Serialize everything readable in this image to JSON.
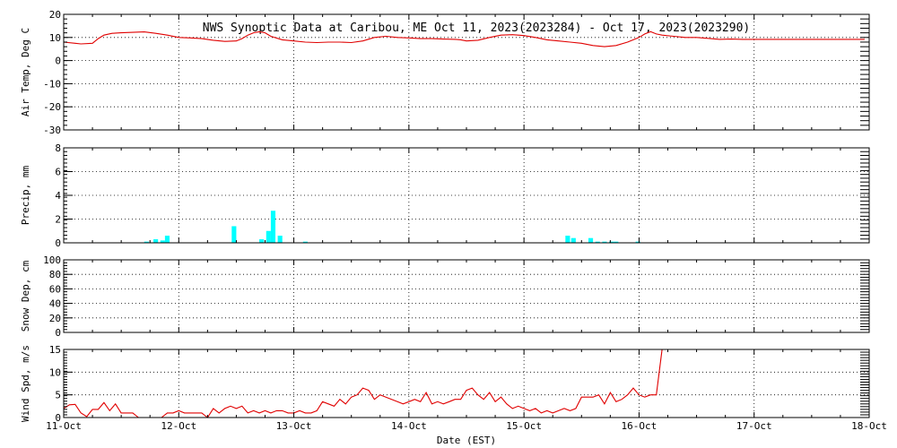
{
  "chart_data": {
    "title": "NWS Synoptic Data at Caribou, ME   Oct 11, 2023(2023284) - Oct 17, 2023(2023290)",
    "xlabel": "Date (EST)",
    "x_ticks": [
      "11-Oct",
      "12-Oct",
      "13-Oct",
      "14-Oct",
      "15-Oct",
      "16-Oct",
      "17-Oct",
      "18-Oct"
    ],
    "xlim": [
      0,
      7
    ],
    "panels": [
      {
        "name": "temp",
        "type": "line",
        "ylabel": "Air Temp, Deg C",
        "ylim": [
          -30,
          20
        ],
        "yticks": [
          20,
          10,
          0,
          -10,
          -20,
          -30
        ],
        "color": "#e00000",
        "points": [
          [
            0.0,
            8.0
          ],
          [
            0.1,
            7.5
          ],
          [
            0.15,
            7.2
          ],
          [
            0.25,
            7.5
          ],
          [
            0.3,
            9.5
          ],
          [
            0.35,
            11.0
          ],
          [
            0.42,
            11.8
          ],
          [
            0.5,
            12.0
          ],
          [
            0.6,
            12.2
          ],
          [
            0.7,
            12.4
          ],
          [
            0.8,
            11.8
          ],
          [
            0.9,
            11.0
          ],
          [
            1.0,
            10.0
          ],
          [
            1.1,
            9.8
          ],
          [
            1.2,
            9.5
          ],
          [
            1.3,
            8.8
          ],
          [
            1.4,
            8.3
          ],
          [
            1.5,
            8.5
          ],
          [
            1.55,
            9.5
          ],
          [
            1.6,
            11.0
          ],
          [
            1.65,
            12.0
          ],
          [
            1.7,
            12.5
          ],
          [
            1.75,
            12.0
          ],
          [
            1.8,
            10.5
          ],
          [
            1.9,
            9.0
          ],
          [
            2.0,
            8.5
          ],
          [
            2.1,
            8.0
          ],
          [
            2.2,
            7.8
          ],
          [
            2.3,
            8.0
          ],
          [
            2.4,
            8.0
          ],
          [
            2.5,
            7.8
          ],
          [
            2.6,
            8.5
          ],
          [
            2.7,
            10.0
          ],
          [
            2.8,
            10.5
          ],
          [
            2.9,
            10.0
          ],
          [
            3.0,
            9.8
          ],
          [
            3.1,
            9.5
          ],
          [
            3.2,
            9.5
          ],
          [
            3.3,
            9.3
          ],
          [
            3.4,
            9.2
          ],
          [
            3.45,
            9.0
          ],
          [
            3.5,
            8.5
          ],
          [
            3.6,
            8.8
          ],
          [
            3.7,
            10.0
          ],
          [
            3.8,
            11.0
          ],
          [
            3.9,
            11.2
          ],
          [
            4.0,
            10.8
          ],
          [
            4.1,
            10.0
          ],
          [
            4.2,
            9.0
          ],
          [
            4.3,
            8.5
          ],
          [
            4.4,
            8.0
          ],
          [
            4.5,
            7.5
          ],
          [
            4.6,
            6.5
          ],
          [
            4.7,
            6.0
          ],
          [
            4.8,
            6.5
          ],
          [
            4.9,
            8.0
          ],
          [
            5.0,
            10.0
          ],
          [
            5.05,
            11.5
          ],
          [
            5.1,
            12.5
          ],
          [
            5.15,
            11.5
          ],
          [
            5.2,
            11.0
          ],
          [
            5.3,
            10.5
          ],
          [
            5.4,
            10.0
          ],
          [
            5.5,
            10.0
          ],
          [
            5.6,
            9.6
          ],
          [
            5.7,
            9.2
          ],
          [
            5.8,
            9.3
          ],
          [
            5.9,
            9.2
          ],
          [
            6.0,
            9.2
          ],
          [
            6.2,
            9.2
          ],
          [
            6.4,
            9.2
          ],
          [
            6.6,
            9.2
          ],
          [
            6.8,
            9.2
          ],
          [
            6.96,
            9.2
          ]
        ]
      },
      {
        "name": "precip",
        "type": "bar",
        "ylabel": "Precip, mm",
        "ylim": [
          0,
          8
        ],
        "yticks": [
          8,
          6,
          4,
          2,
          0
        ],
        "color": "#00ffff",
        "bar_width": 0.04,
        "bars": [
          [
            0.7,
            0.1
          ],
          [
            0.78,
            0.3
          ],
          [
            0.84,
            0.2
          ],
          [
            0.88,
            0.6
          ],
          [
            1.46,
            1.4
          ],
          [
            1.7,
            0.3
          ],
          [
            1.76,
            1.0
          ],
          [
            1.8,
            2.7
          ],
          [
            1.86,
            0.6
          ],
          [
            2.08,
            0.1
          ],
          [
            4.36,
            0.6
          ],
          [
            4.41,
            0.4
          ],
          [
            4.56,
            0.4
          ],
          [
            4.62,
            0.1
          ],
          [
            4.68,
            0.1
          ],
          [
            4.74,
            0.1
          ],
          [
            4.78,
            0.1
          ],
          [
            4.97,
            0.1
          ]
        ]
      },
      {
        "name": "snow",
        "type": "line",
        "ylabel": "Snow Dep, cm",
        "ylim": [
          0,
          100
        ],
        "yticks": [
          100,
          80,
          60,
          40,
          20,
          0
        ],
        "color": "#e00000",
        "points": []
      },
      {
        "name": "wind",
        "type": "line",
        "ylabel": "Wind Spd, m/s",
        "ylim": [
          0,
          15
        ],
        "yticks": [
          15,
          10,
          5,
          0
        ],
        "color": "#e00000",
        "points": [
          [
            0.0,
            2.0
          ],
          [
            0.05,
            2.8
          ],
          [
            0.1,
            2.9
          ],
          [
            0.15,
            1.0
          ],
          [
            0.2,
            0.2
          ],
          [
            0.25,
            1.8
          ],
          [
            0.3,
            1.8
          ],
          [
            0.35,
            3.3
          ],
          [
            0.4,
            1.5
          ],
          [
            0.45,
            3.0
          ],
          [
            0.5,
            1.0
          ],
          [
            0.55,
            1.0
          ],
          [
            0.6,
            1.0
          ],
          [
            0.65,
            0.0
          ],
          [
            0.7,
            0.0
          ],
          [
            0.75,
            0.0
          ],
          [
            0.8,
            0.0
          ],
          [
            0.85,
            0.0
          ],
          [
            0.9,
            1.0
          ],
          [
            0.95,
            1.0
          ],
          [
            1.0,
            1.5
          ],
          [
            1.05,
            1.0
          ],
          [
            1.1,
            1.0
          ],
          [
            1.15,
            1.0
          ],
          [
            1.2,
            1.0
          ],
          [
            1.25,
            0.0
          ],
          [
            1.3,
            2.0
          ],
          [
            1.35,
            1.0
          ],
          [
            1.4,
            2.0
          ],
          [
            1.45,
            2.5
          ],
          [
            1.5,
            2.0
          ],
          [
            1.55,
            2.5
          ],
          [
            1.6,
            1.0
          ],
          [
            1.65,
            1.5
          ],
          [
            1.7,
            1.0
          ],
          [
            1.75,
            1.5
          ],
          [
            1.8,
            1.0
          ],
          [
            1.85,
            1.5
          ],
          [
            1.9,
            1.5
          ],
          [
            1.95,
            1.0
          ],
          [
            2.0,
            1.0
          ],
          [
            2.05,
            1.5
          ],
          [
            2.1,
            1.0
          ],
          [
            2.15,
            1.0
          ],
          [
            2.2,
            1.5
          ],
          [
            2.25,
            3.5
          ],
          [
            2.3,
            3.0
          ],
          [
            2.35,
            2.5
          ],
          [
            2.4,
            4.0
          ],
          [
            2.45,
            3.0
          ],
          [
            2.5,
            4.5
          ],
          [
            2.55,
            5.0
          ],
          [
            2.6,
            6.5
          ],
          [
            2.65,
            6.0
          ],
          [
            2.7,
            4.0
          ],
          [
            2.75,
            5.0
          ],
          [
            2.8,
            4.5
          ],
          [
            2.85,
            4.0
          ],
          [
            2.9,
            3.5
          ],
          [
            2.95,
            3.0
          ],
          [
            3.0,
            3.5
          ],
          [
            3.05,
            4.0
          ],
          [
            3.1,
            3.5
          ],
          [
            3.15,
            5.5
          ],
          [
            3.2,
            3.0
          ],
          [
            3.25,
            3.5
          ],
          [
            3.3,
            3.0
          ],
          [
            3.35,
            3.5
          ],
          [
            3.4,
            4.0
          ],
          [
            3.45,
            4.0
          ],
          [
            3.5,
            6.0
          ],
          [
            3.55,
            6.5
          ],
          [
            3.6,
            5.0
          ],
          [
            3.65,
            4.0
          ],
          [
            3.7,
            5.5
          ],
          [
            3.75,
            3.5
          ],
          [
            3.8,
            4.5
          ],
          [
            3.85,
            3.0
          ],
          [
            3.9,
            2.0
          ],
          [
            3.95,
            2.5
          ],
          [
            4.0,
            2.0
          ],
          [
            4.05,
            1.5
          ],
          [
            4.1,
            2.0
          ],
          [
            4.15,
            1.0
          ],
          [
            4.2,
            1.5
          ],
          [
            4.25,
            1.0
          ],
          [
            4.3,
            1.5
          ],
          [
            4.35,
            2.0
          ],
          [
            4.4,
            1.5
          ],
          [
            4.45,
            2.0
          ],
          [
            4.5,
            4.5
          ],
          [
            4.55,
            4.5
          ],
          [
            4.6,
            4.5
          ],
          [
            4.65,
            5.0
          ],
          [
            4.7,
            3.0
          ],
          [
            4.75,
            5.5
          ],
          [
            4.8,
            3.5
          ],
          [
            4.85,
            4.0
          ],
          [
            4.9,
            5.0
          ],
          [
            4.95,
            6.5
          ],
          [
            5.0,
            5.0
          ],
          [
            5.05,
            4.5
          ],
          [
            5.1,
            5.0
          ],
          [
            5.15,
            5.0
          ],
          [
            5.2,
            15.0
          ]
        ]
      }
    ]
  }
}
